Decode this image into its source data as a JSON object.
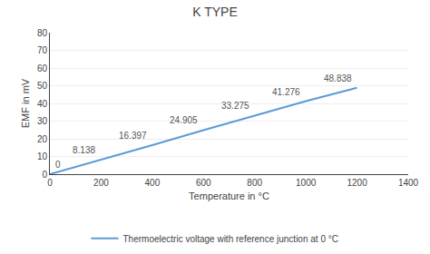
{
  "chart_data": {
    "type": "line",
    "title": "K TYPE",
    "xlabel": "Temperature in °C",
    "ylabel": "EMF in mV",
    "x": [
      0,
      200,
      400,
      600,
      800,
      1000,
      1200
    ],
    "series": [
      {
        "name": "Thermoelectric voltage with reference junction at 0 °C",
        "color": "#5b9bd5",
        "values": [
          0,
          8.138,
          16.397,
          24.905,
          33.275,
          41.276,
          48.838
        ]
      }
    ],
    "xlim": [
      0,
      1400
    ],
    "ylim": [
      0,
      80
    ],
    "xticks": [
      0,
      200,
      400,
      600,
      800,
      1000,
      1200,
      1400
    ],
    "yticks": [
      0,
      10,
      20,
      30,
      40,
      50,
      60,
      70,
      80
    ],
    "grid": true,
    "legend": "bottom",
    "data_labels": true
  }
}
